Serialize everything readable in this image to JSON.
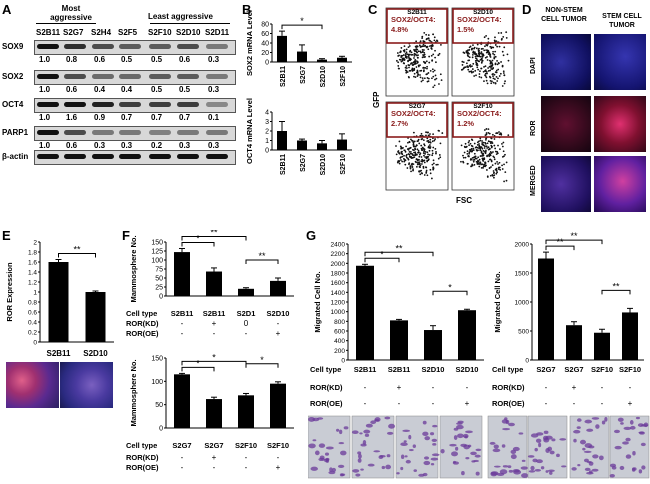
{
  "panelA": {
    "label": "A",
    "header_left": "Most aggressive",
    "header_right": "Least aggressive",
    "lanes": [
      "S2B11",
      "S2G7",
      "S2H4",
      "S2F5",
      "S2F10",
      "S2D10",
      "S2D11"
    ],
    "blots": [
      {
        "name": "SOX9",
        "values": [
          "1.0",
          "0.8",
          "0.6",
          "0.5",
          "0.5",
          "0.6",
          "0.3"
        ]
      },
      {
        "name": "SOX2",
        "values": [
          "1.0",
          "0.6",
          "0.4",
          "0.4",
          "0.5",
          "0.5",
          "0.3"
        ]
      },
      {
        "name": "OCT4",
        "values": [
          "1.0",
          "1.6",
          "0.9",
          "0.7",
          "0.7",
          "0.7",
          "0.1"
        ]
      },
      {
        "name": "PARP1",
        "values": [
          "1.0",
          "0.6",
          "0.3",
          "0.3",
          "0.2",
          "0.3",
          "0.3"
        ]
      },
      {
        "name": "β-actin",
        "values": []
      }
    ]
  },
  "panelB": {
    "label": "B"
  },
  "panelC": {
    "label": "C",
    "y_label": "GFP",
    "x_label": "FSC",
    "plots": [
      {
        "sample": "S2B11",
        "gate": "SOX2/OCT4: 4.8%"
      },
      {
        "sample": "S2D10",
        "gate": "SOX2/OCT4: 1.5%"
      },
      {
        "sample": "S2G7",
        "gate": "SOX2/OCT4: 2.7%"
      },
      {
        "sample": "S2F10",
        "gate": "SOX2/OCT4: 1.2%"
      }
    ]
  },
  "panelD": {
    "label": "D",
    "col_left": "NON-STEM CELL TUMOR",
    "col_right": "STEM CELL TUMOR",
    "rows": [
      "DAPI",
      "ROR",
      "MERGED"
    ]
  },
  "panelE": {
    "label": "E"
  },
  "panelF": {
    "label": "F",
    "row_cell_type": "Cell type",
    "row_kd": "ROR(KD)",
    "row_oe": "ROR(OE)",
    "top_celltypes": [
      "S2B11",
      "S2B11",
      "S2D1",
      "S2D10"
    ],
    "top_kd": [
      "-",
      "+",
      "0",
      "-"
    ],
    "top_oe": [
      "-",
      "-",
      "-",
      "+"
    ],
    "bottom_celltypes": [
      "S2G7",
      "S2G7",
      "S2F10",
      "S2F10"
    ],
    "bottom_kd": [
      "-",
      "+",
      "-",
      "-"
    ],
    "bottom_oe": [
      "-",
      "-",
      "-",
      "+"
    ]
  },
  "panelG": {
    "label": "G",
    "row_cell_type": "Cell type",
    "row_kd": "ROR(KD)",
    "row_oe": "ROR(OE)",
    "left_celltypes": [
      "S2B11",
      "S2B11",
      "S2D10",
      "S2D10"
    ],
    "right_celltypes": [
      "S2G7",
      "S2G7",
      "S2F10",
      "S2F10"
    ],
    "kd": [
      "-",
      "+",
      "-",
      "-"
    ],
    "oe": [
      "-",
      "-",
      "-",
      "+"
    ]
  },
  "chart_data": [
    {
      "id": "B-top",
      "type": "bar",
      "categories": [
        "S2B11",
        "S2G7",
        "S2D10",
        "S2F10"
      ],
      "values": [
        55,
        22,
        5,
        9
      ],
      "errors": [
        10,
        14,
        2,
        3
      ],
      "ylabel": "SOX2 mRNA Level",
      "ylim": [
        0,
        80
      ],
      "yticks": [
        0,
        20,
        40,
        60,
        80
      ],
      "significance": [
        {
          "from": 0,
          "to": 2,
          "label": "*"
        }
      ]
    },
    {
      "id": "B-bottom",
      "type": "bar",
      "categories": [
        "S2B11",
        "S2G7",
        "S2D10",
        "S2F10"
      ],
      "values": [
        2.0,
        1.0,
        0.7,
        1.1
      ],
      "errors": [
        1.0,
        0.15,
        0.3,
        0.6
      ],
      "ylabel": "OCT4 mRNA Level",
      "ylim": [
        0,
        4
      ],
      "yticks": [
        0,
        1,
        2,
        3,
        4
      ],
      "significance": []
    },
    {
      "id": "E",
      "type": "bar",
      "categories": [
        "S2B11",
        "S2D10"
      ],
      "values": [
        1.6,
        1.0
      ],
      "errors": [
        0.05,
        0.02
      ],
      "ylabel": "ROR Expression",
      "ylim": [
        0,
        2
      ],
      "yticks": [
        0,
        0.2,
        0.4,
        0.6,
        0.8,
        1,
        1.2,
        1.4,
        1.6,
        1.8,
        2
      ],
      "significance": [
        {
          "from": 0,
          "to": 1,
          "label": "**"
        }
      ]
    },
    {
      "id": "F-top",
      "type": "bar",
      "categories": [
        "S2B11",
        "S2B11 ROR(KD)",
        "S2D1",
        "S2D10 ROR(OE)"
      ],
      "values": [
        122,
        68,
        20,
        42
      ],
      "errors": [
        10,
        10,
        3,
        8
      ],
      "ylabel": "Mammosphere No.",
      "ylim": [
        0,
        150
      ],
      "yticks": [
        0,
        25,
        50,
        75,
        100,
        125,
        150
      ],
      "significance": [
        {
          "from": 0,
          "to": 1,
          "label": "*"
        },
        {
          "from": 0,
          "to": 2,
          "label": "**"
        },
        {
          "from": 2,
          "to": 3,
          "label": "**"
        }
      ]
    },
    {
      "id": "F-bottom",
      "type": "bar",
      "categories": [
        "S2G7",
        "S2G7 ROR(KD)",
        "S2F10",
        "S2F10 ROR(OE)"
      ],
      "values": [
        115,
        62,
        70,
        95
      ],
      "errors": [
        2,
        4,
        4,
        4
      ],
      "ylabel": "Mammosphere No.",
      "ylim": [
        0,
        150
      ],
      "yticks": [
        0,
        50,
        100,
        150
      ],
      "significance": [
        {
          "from": 0,
          "to": 1,
          "label": "*"
        },
        {
          "from": 0,
          "to": 2,
          "label": "*"
        },
        {
          "from": 2,
          "to": 3,
          "label": "*"
        }
      ]
    },
    {
      "id": "G-left",
      "type": "bar",
      "categories": [
        "S2B11",
        "S2B11 ROR(KD)",
        "S2D10",
        "S2D10 ROR(OE)"
      ],
      "values": [
        1950,
        820,
        620,
        1030
      ],
      "errors": [
        30,
        20,
        90,
        20
      ],
      "ylabel": "Migrated Cell No.",
      "ylim": [
        0,
        2400
      ],
      "yticks": [
        0,
        200,
        400,
        600,
        800,
        1000,
        1200,
        1400,
        1600,
        1800,
        2000,
        2200,
        2400
      ],
      "significance": [
        {
          "from": 0,
          "to": 1,
          "label": "*"
        },
        {
          "from": 0,
          "to": 2,
          "label": "**"
        },
        {
          "from": 2,
          "to": 3,
          "label": "*"
        }
      ]
    },
    {
      "id": "G-right",
      "type": "bar",
      "categories": [
        "S2G7",
        "S2G7 ROR(KD)",
        "S2F10",
        "S2F10 ROR(OE)"
      ],
      "values": [
        1750,
        600,
        470,
        820
      ],
      "errors": [
        110,
        60,
        60,
        70
      ],
      "ylabel": "Migrated Cell No.",
      "ylim": [
        0,
        2000
      ],
      "yticks": [
        0,
        500,
        1000,
        1500,
        2000
      ],
      "significance": [
        {
          "from": 0,
          "to": 1,
          "label": "**"
        },
        {
          "from": 0,
          "to": 2,
          "label": "**"
        },
        {
          "from": 2,
          "to": 3,
          "label": "**"
        }
      ]
    }
  ]
}
